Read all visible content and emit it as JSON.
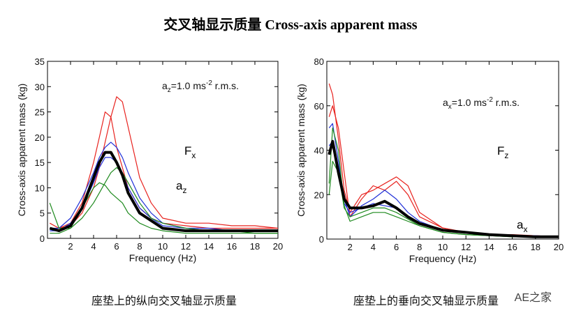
{
  "title": "交叉轴显示质量 Cross-axis apparent mass",
  "watermark": "AE之家",
  "chart_data": [
    {
      "type": "line",
      "caption": "座垫上的纵向交叉轴显示质量",
      "xlabel": "Frequency (Hz)",
      "ylabel": "Cross-axis apparent mass (kg)",
      "xlim": [
        0,
        20
      ],
      "ylim": [
        0,
        35
      ],
      "xticks": [
        2,
        4,
        6,
        8,
        10,
        12,
        14,
        16,
        18,
        20
      ],
      "yticks": [
        0,
        5,
        10,
        15,
        20,
        25,
        30,
        35
      ],
      "annotation": {
        "base": "a",
        "sub": "z",
        "mid": "=1.0 ms",
        "sup": "-2",
        "end": " r.m.s."
      },
      "force_label": {
        "main": "F",
        "sub": "x"
      },
      "accel_label": {
        "main": "a",
        "sub": "z"
      },
      "x": [
        0.2,
        1,
        2,
        3,
        4,
        4.5,
        5,
        5.5,
        6,
        6.5,
        7,
        8,
        9,
        10,
        12,
        14,
        16,
        18,
        20
      ],
      "series": [
        {
          "color": "#e8231f",
          "width": 1.2,
          "values": [
            3,
            2,
            2.5,
            5,
            10,
            14,
            19,
            24,
            28,
            27,
            22,
            12,
            7,
            4,
            3,
            3,
            2.5,
            2.5,
            2
          ]
        },
        {
          "color": "#e8231f",
          "width": 1.2,
          "values": [
            2,
            2,
            3,
            7,
            15,
            20,
            25,
            24,
            18,
            14,
            10,
            6,
            4,
            3,
            2.5,
            2,
            2,
            2,
            2
          ]
        },
        {
          "color": "#2030d8",
          "width": 1.2,
          "values": [
            2,
            2,
            4,
            8,
            13,
            16,
            18,
            19,
            18,
            16,
            13,
            8,
            5,
            3,
            2,
            2,
            1.5,
            1.5,
            1.5
          ]
        },
        {
          "color": "#2030d8",
          "width": 1.2,
          "values": [
            1.5,
            1.5,
            3,
            6,
            11,
            14,
            16,
            16,
            15,
            13,
            10,
            6,
            4,
            2.5,
            2,
            1.5,
            1.5,
            1.5,
            1.5
          ]
        },
        {
          "color": "#1e8a1e",
          "width": 1.2,
          "values": [
            1,
            1,
            2,
            6,
            10,
            11,
            10.5,
            9,
            8,
            7,
            5,
            3,
            2,
            1.5,
            1,
            1,
            1,
            1,
            1
          ]
        },
        {
          "color": "#1e8a1e",
          "width": 1.2,
          "values": [
            7,
            2,
            2,
            4,
            7,
            9,
            11,
            13,
            14,
            13,
            11,
            7,
            4,
            3,
            2,
            1.5,
            1.5,
            1,
            1
          ]
        },
        {
          "color": "#000000",
          "width": 4,
          "values": [
            2,
            1.5,
            2.5,
            6,
            12,
            15,
            17,
            17,
            15,
            12.5,
            9,
            5,
            3.5,
            2,
            1.5,
            1.5,
            1.5,
            1.5,
            1.5
          ]
        }
      ]
    },
    {
      "type": "line",
      "caption": "座垫上的垂向交叉轴显示质量",
      "xlabel": "Frequency (Hz)",
      "ylabel": "Cross-axis apparent mass (kg)",
      "xlim": [
        0,
        20
      ],
      "ylim": [
        0,
        80
      ],
      "xticks": [
        2,
        4,
        6,
        8,
        10,
        12,
        14,
        16,
        18,
        20
      ],
      "yticks": [
        0,
        20,
        40,
        60,
        80
      ],
      "annotation": {
        "base": "a",
        "sub": "x",
        "mid": "=1.0 ms",
        "sup": "-2",
        "end": " r.m.s."
      },
      "force_label": {
        "main": "F",
        "sub": "z"
      },
      "accel_label": {
        "main": "a",
        "sub": "x"
      },
      "x": [
        0.2,
        0.5,
        1,
        1.5,
        2,
        3,
        4,
        5,
        6,
        7,
        8,
        10,
        12,
        14,
        16,
        18,
        20
      ],
      "series": [
        {
          "color": "#e8231f",
          "width": 1.2,
          "values": [
            70,
            65,
            45,
            22,
            12,
            20,
            22,
            25,
            28,
            24,
            12,
            5,
            3,
            2,
            2,
            1.5,
            1
          ]
        },
        {
          "color": "#e8231f",
          "width": 1.2,
          "values": [
            55,
            60,
            50,
            30,
            10,
            18,
            24,
            22,
            26,
            20,
            10,
            5,
            3,
            2,
            1.5,
            1.5,
            1
          ]
        },
        {
          "color": "#2030d8",
          "width": 1.2,
          "values": [
            50,
            52,
            35,
            18,
            10,
            15,
            18,
            22,
            18,
            12,
            8,
            4,
            3,
            2,
            1.5,
            1.5,
            1
          ]
        },
        {
          "color": "#2030d8",
          "width": 1.2,
          "values": [
            42,
            44,
            30,
            16,
            12,
            14,
            16,
            15,
            14,
            10,
            7,
            4,
            3,
            2,
            1.5,
            1,
            1
          ]
        },
        {
          "color": "#1e8a1e",
          "width": 1.2,
          "values": [
            25,
            50,
            40,
            15,
            8,
            10,
            12,
            12,
            10,
            8,
            6,
            3,
            2,
            1.5,
            1,
            1,
            1
          ]
        },
        {
          "color": "#1e8a1e",
          "width": 1.2,
          "values": [
            20,
            35,
            30,
            14,
            10,
            12,
            14,
            14,
            12,
            9,
            6,
            3,
            2,
            1.5,
            1,
            1,
            1
          ]
        },
        {
          "color": "#000000",
          "width": 4,
          "values": [
            38,
            44,
            30,
            18,
            14,
            14,
            15,
            17,
            14,
            10,
            7,
            4,
            3,
            2,
            1.5,
            1,
            1
          ]
        }
      ]
    }
  ]
}
